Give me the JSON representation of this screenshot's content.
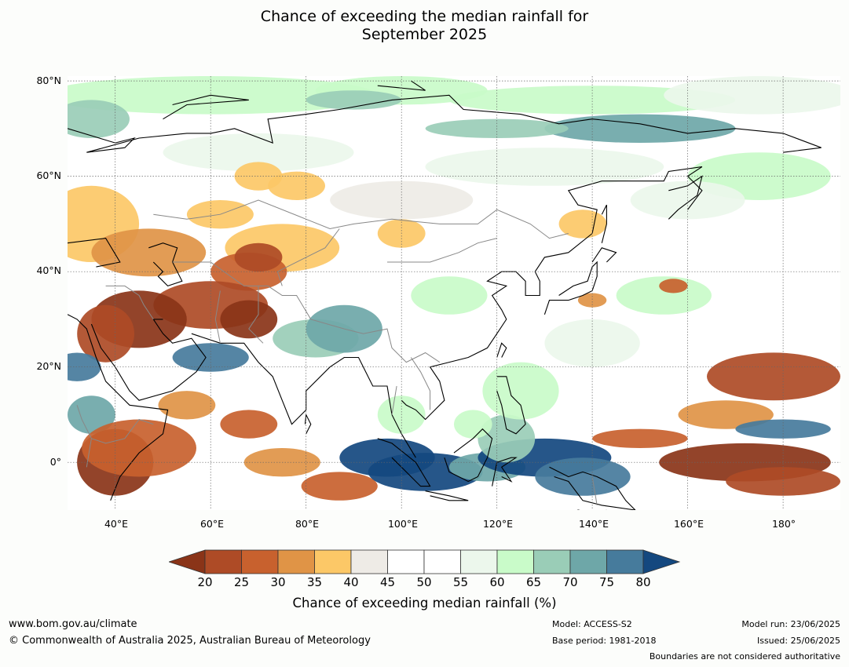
{
  "title_line1": "Chance of exceeding the median rainfall for",
  "title_line2": "September 2025",
  "lat_labels": [
    "80°N",
    "60°N",
    "40°N",
    "20°N",
    "0°"
  ],
  "lon_labels": [
    "40°E",
    "60°E",
    "80°E",
    "100°E",
    "120°E",
    "140°E",
    "160°E",
    "180°"
  ],
  "map_extent": {
    "lon": [
      30,
      192
    ],
    "lat": [
      -10,
      81
    ]
  },
  "colorbar": {
    "ticks": [
      "20",
      "25",
      "30",
      "35",
      "40",
      "45",
      "50",
      "55",
      "60",
      "65",
      "70",
      "75",
      "80"
    ],
    "colors": [
      "#8a3418",
      "#ae4b26",
      "#c8612e",
      "#e09446",
      "#fcc867",
      "#eeebe6",
      "#ffffff",
      "#ffffff",
      "#ecf7ec",
      "#c9fbc9",
      "#9acdb7",
      "#6ea7a8",
      "#467b9c",
      "#14487f"
    ],
    "label": "Chance of exceeding median rainfall (%)"
  },
  "footer": {
    "url": "www.bom.gov.au/climate",
    "copyright": "© Commonwealth of Australia 2025, Australian Bureau of Meteorology",
    "model": "Model: ACCESS-S2",
    "base_period": "Base period: 1981-2018",
    "model_run": "Model run: 23/06/2025",
    "issued": "Issued: 25/06/2025",
    "disclaimer": "Boundaries are not considered authoritative"
  }
}
